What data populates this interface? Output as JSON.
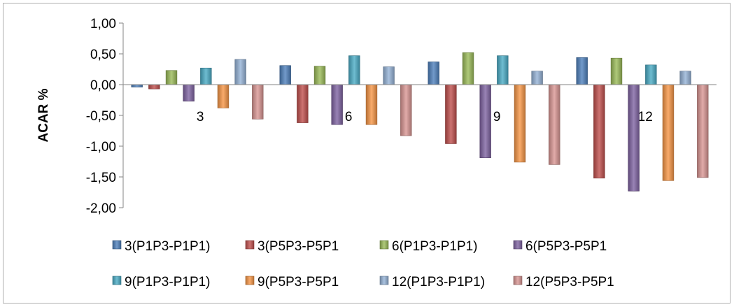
{
  "chart_data": {
    "type": "bar",
    "ylabel": "ACAR %",
    "xlabel": "",
    "title": "",
    "ylim": [
      -2.0,
      1.0
    ],
    "yticks": [
      1.0,
      0.5,
      0.0,
      -0.5,
      -1.0,
      -1.5,
      -2.0
    ],
    "ytick_labels": [
      "1,00",
      "0,50",
      "0,00",
      "-0,50",
      "-1,00",
      "-1,50",
      "-2,00"
    ],
    "categories": [
      "3",
      "6",
      "9",
      "12"
    ],
    "grid": false,
    "legend_position": "bottom",
    "series": [
      {
        "name": "3(P1P3-P1P1)",
        "color": "#4f81bd",
        "values": [
          -0.04,
          0.31,
          0.37,
          0.44
        ]
      },
      {
        "name": "3(P5P3-P5P1",
        "color": "#c0504d",
        "values": [
          -0.07,
          -0.62,
          -0.96,
          -1.52
        ]
      },
      {
        "name": "6(P1P3-P1P1)",
        "color": "#9bbb59",
        "values": [
          0.23,
          0.3,
          0.52,
          0.43
        ]
      },
      {
        "name": "6(P5P3-P5P1",
        "color": "#8064a2",
        "values": [
          -0.27,
          -0.65,
          -1.19,
          -1.73
        ]
      },
      {
        "name": "9(P1P3-P1P1)",
        "color": "#4bacc6",
        "values": [
          0.27,
          0.47,
          0.47,
          0.32
        ]
      },
      {
        "name": "9(P5P3-P5P1",
        "color": "#f79646",
        "values": [
          -0.38,
          -0.65,
          -1.26,
          -1.56
        ]
      },
      {
        "name": "12(P1P3-P1P1)",
        "color": "#95b3d7",
        "values": [
          0.41,
          0.29,
          0.22,
          0.22
        ]
      },
      {
        "name": "12(P5P3-P5P1",
        "color": "#d99694",
        "values": [
          -0.56,
          -0.83,
          -1.3,
          -1.51
        ]
      }
    ]
  }
}
